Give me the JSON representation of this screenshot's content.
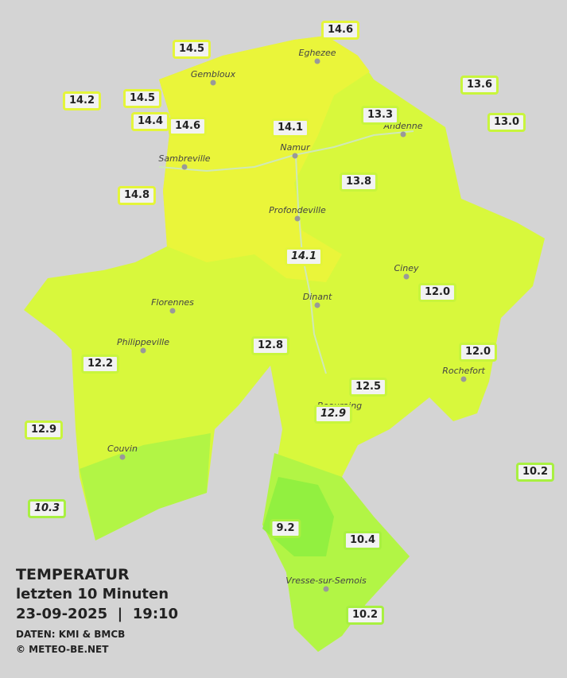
{
  "map": {
    "title": "TEMPERATUR",
    "subtitle": "letzten 10 Minuten",
    "datetime": "23-09-2025  |  19:10",
    "source": "DATEN: KMI & BMCB",
    "copyright": "© METEO-BE.NET",
    "stations": [
      {
        "label": "14.6",
        "color": "#e4f53a",
        "italic": false
      },
      {
        "label": "14.5",
        "color": "#e4f53a",
        "italic": false
      },
      {
        "label": "13.6",
        "color": "#c8f53c",
        "italic": false
      },
      {
        "label": "14.2",
        "color": "#e4f53a",
        "italic": false
      },
      {
        "label": "14.5",
        "color": "#e4f53a",
        "italic": false
      },
      {
        "label": "14.4",
        "color": "#e4f53a",
        "italic": false
      },
      {
        "label": "14.6",
        "color": "#e4f53a",
        "italic": false
      },
      {
        "label": "14.1",
        "color": "#e4f53a",
        "italic": false
      },
      {
        "label": "13.3",
        "color": "#c8f53c",
        "italic": false
      },
      {
        "label": "13.0",
        "color": "#c8f53c",
        "italic": false
      },
      {
        "label": "14.8",
        "color": "#e4f53a",
        "italic": false
      },
      {
        "label": "13.8",
        "color": "#c8f53c",
        "italic": false
      },
      {
        "label": "14.1",
        "color": "#e4f53a",
        "italic": true
      },
      {
        "label": "12.0",
        "color": "#c8f53c",
        "italic": false
      },
      {
        "label": "12.8",
        "color": "#c8f53c",
        "italic": false
      },
      {
        "label": "12.2",
        "color": "#c8f53c",
        "italic": false
      },
      {
        "label": "12.0",
        "color": "#c8f53c",
        "italic": false
      },
      {
        "label": "12.5",
        "color": "#c8f53c",
        "italic": false
      },
      {
        "label": "12.9",
        "color": "#c8f53c",
        "italic": true
      },
      {
        "label": "12.9",
        "color": "#c8f53c",
        "italic": false
      },
      {
        "label": "10.2",
        "color": "#a8f040",
        "italic": false
      },
      {
        "label": "10.3",
        "color": "#a8f040",
        "italic": true
      },
      {
        "label": "9.2",
        "color": "#a8f040",
        "italic": false
      },
      {
        "label": "10.4",
        "color": "#a8f040",
        "italic": false
      },
      {
        "label": "10.2",
        "color": "#a8f040",
        "italic": false
      }
    ],
    "cities": [
      "Eghezee",
      "Gembloux",
      "Andenne",
      "Namur",
      "Sambreville",
      "Profondeville",
      "Ciney",
      "Dinant",
      "Florennes",
      "Philippeville",
      "Rochefort",
      "Beauraing",
      "Couvin",
      "Vresse-sur-Semois"
    ]
  }
}
